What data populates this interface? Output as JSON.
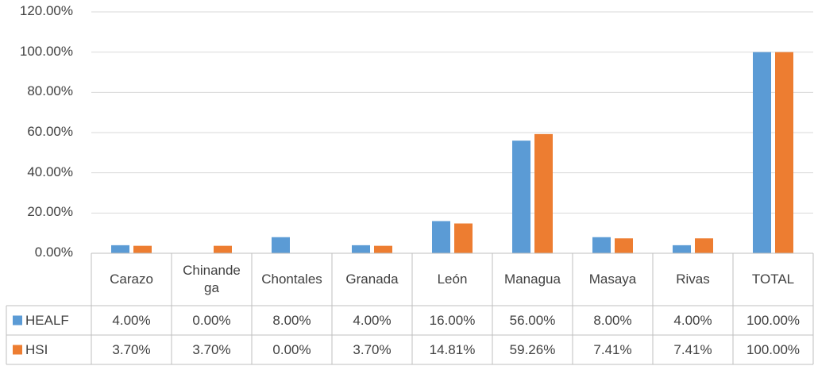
{
  "chart_data": {
    "type": "bar",
    "categories": [
      "Carazo",
      "Chinandega",
      "Chontales",
      "Granada",
      "León",
      "Managua",
      "Masaya",
      "Rivas",
      "TOTAL"
    ],
    "series": [
      {
        "name": "HEALF",
        "color": "#5b9bd5",
        "values": [
          4,
          0,
          8,
          4,
          16,
          56,
          8,
          4,
          100
        ],
        "value_labels": [
          "4.00%",
          "0.00%",
          "8.00%",
          "4.00%",
          "16.00%",
          "56.00%",
          "8.00%",
          "4.00%",
          "100.00%"
        ]
      },
      {
        "name": "HSI",
        "color": "#ed7d31",
        "values": [
          3.7,
          3.7,
          0,
          3.7,
          14.81,
          59.26,
          7.41,
          7.41,
          100
        ],
        "value_labels": [
          "3.70%",
          "3.70%",
          "0.00%",
          "3.70%",
          "14.81%",
          "59.26%",
          "7.41%",
          "7.41%",
          "100.00%"
        ]
      }
    ],
    "ylim": [
      0,
      120
    ],
    "yticks": [
      {
        "value": 0,
        "label": "0.00%"
      },
      {
        "value": 20,
        "label": "20.00%"
      },
      {
        "value": 40,
        "label": "40.00%"
      },
      {
        "value": 60,
        "label": "60.00%"
      },
      {
        "value": 80,
        "label": "80.00%"
      },
      {
        "value": 100,
        "label": "100.00%"
      },
      {
        "value": 120,
        "label": "120.00%"
      }
    ],
    "grid": true,
    "data_table": true
  }
}
